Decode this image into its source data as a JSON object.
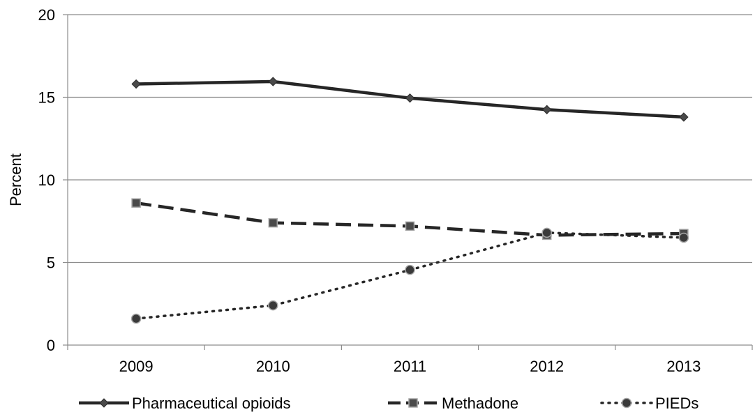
{
  "chart_data": {
    "type": "line",
    "title": "",
    "xlabel": "",
    "ylabel": "Percent",
    "categories": [
      "2009",
      "2010",
      "2011",
      "2012",
      "2013"
    ],
    "ylim": [
      0,
      20
    ],
    "yticks": [
      "0",
      "5",
      "10",
      "15",
      "20"
    ],
    "grid": "horizontal",
    "legend_position": "bottom",
    "series": [
      {
        "name": "Pharmaceutical opioids",
        "values": [
          15.8,
          15.95,
          14.95,
          14.25,
          13.8
        ],
        "style": "solid",
        "marker": "diamond",
        "color": "#262626"
      },
      {
        "name": "Methadone",
        "values": [
          8.6,
          7.4,
          7.2,
          6.65,
          6.75
        ],
        "style": "dashed",
        "marker": "square",
        "color": "#262626"
      },
      {
        "name": "PIEDs",
        "values": [
          1.6,
          2.4,
          4.55,
          6.8,
          6.5
        ],
        "style": "dotted",
        "marker": "circle",
        "color": "#262626"
      }
    ]
  }
}
